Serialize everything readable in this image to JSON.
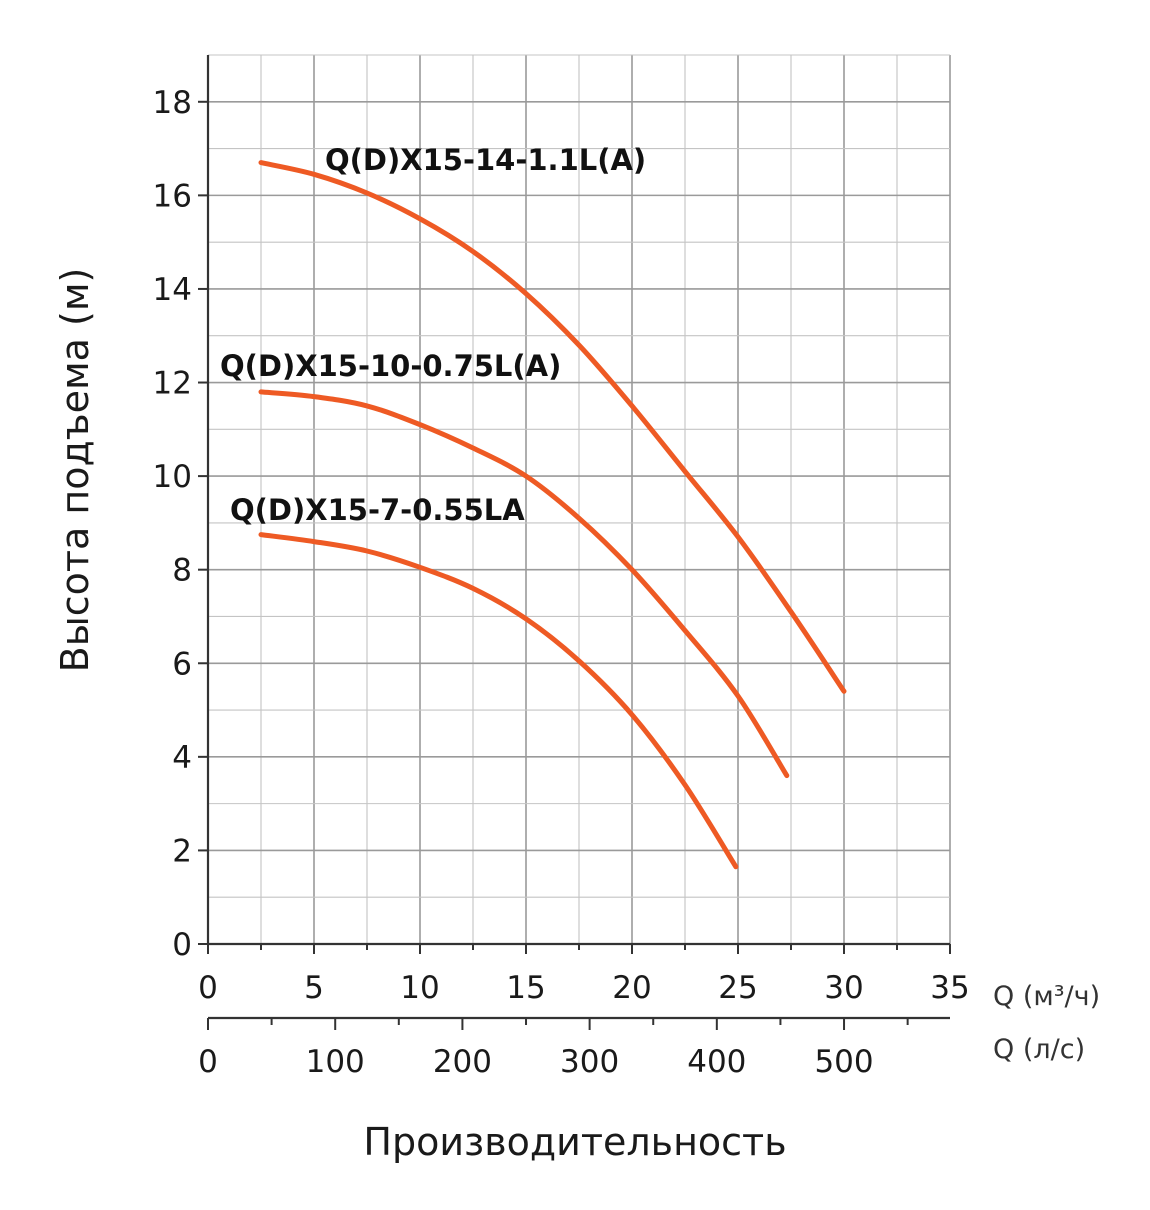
{
  "chart_data": {
    "type": "line",
    "title": "",
    "ylabel": "Высота подъема (м)",
    "xlabel": "Производительность",
    "x_unit_label": "Q (м³/ч)",
    "x2_unit_label": "Q (л/с)",
    "ylim": [
      0,
      19
    ],
    "xlim": [
      0,
      35
    ],
    "y_ticks": [
      0,
      2,
      4,
      6,
      8,
      10,
      12,
      14,
      16,
      18
    ],
    "x_ticks": [
      0,
      5,
      10,
      15,
      20,
      25,
      30,
      35
    ],
    "x2_ticks": [
      0,
      100,
      200,
      300,
      400,
      500
    ],
    "x2_max": 583.3,
    "grid": true,
    "line_color": "#ee5a24",
    "series": [
      {
        "name": "Q(D)X15-14-1.1L(A)",
        "x": [
          2.5,
          5,
          7.5,
          10,
          12.5,
          15,
          17.5,
          20,
          22.5,
          25,
          27.5,
          30
        ],
        "y": [
          16.7,
          16.45,
          16.05,
          15.5,
          14.8,
          13.9,
          12.8,
          11.5,
          10.1,
          8.7,
          7.1,
          5.4
        ]
      },
      {
        "name": "Q(D)X15-10-0.75L(A)",
        "x": [
          2.5,
          5,
          7.5,
          10,
          12.5,
          15,
          17.5,
          20,
          22.5,
          25,
          27.3
        ],
        "y": [
          11.8,
          11.7,
          11.5,
          11.1,
          10.6,
          10.0,
          9.1,
          8.0,
          6.7,
          5.3,
          3.6
        ]
      },
      {
        "name": "Q(D)X15-7-0.55LA",
        "x": [
          2.5,
          5,
          7.5,
          10,
          12.5,
          15,
          17.5,
          20,
          22.5,
          24.9
        ],
        "y": [
          8.75,
          8.6,
          8.4,
          8.05,
          7.6,
          6.95,
          6.05,
          4.9,
          3.4,
          1.65
        ]
      }
    ]
  }
}
